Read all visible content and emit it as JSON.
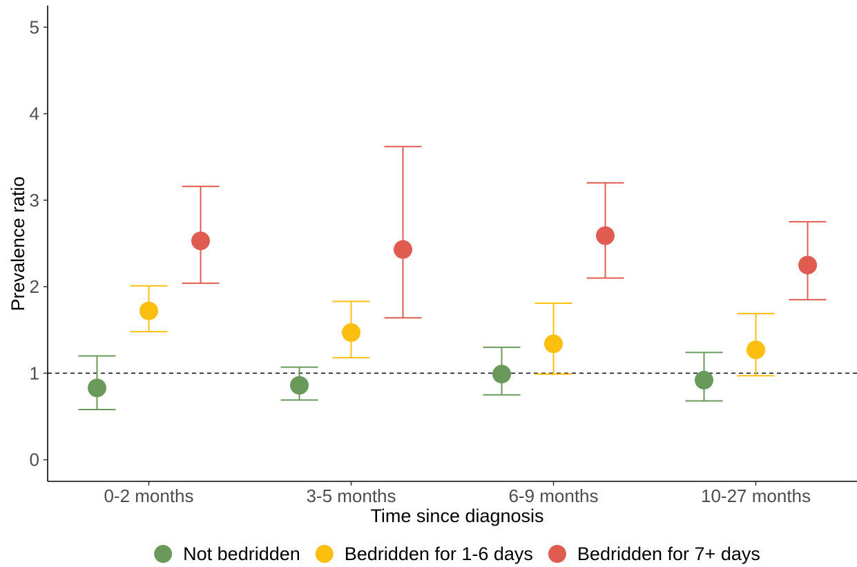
{
  "chart_data": {
    "type": "scatter",
    "title": "",
    "xlabel": "Time since diagnosis",
    "ylabel": "Prevalence ratio",
    "categories": [
      "0-2 months",
      "3-5 months",
      "6-9 months",
      "10-27 months"
    ],
    "yticks": [
      0,
      1,
      2,
      3,
      4,
      5
    ],
    "ylim": [
      -0.25,
      5.25
    ],
    "reference_line": 1,
    "grid": false,
    "legend_position": "bottom",
    "series": [
      {
        "name": "Not bedridden",
        "color": "#6a9a5b",
        "values": [
          0.83,
          0.86,
          0.99,
          0.92
        ],
        "lower": [
          0.58,
          0.69,
          0.75,
          0.68
        ],
        "upper": [
          1.2,
          1.07,
          1.3,
          1.24
        ]
      },
      {
        "name": "Bedridden for 1-6 days",
        "color": "#fdbf0f",
        "values": [
          1.72,
          1.47,
          1.34,
          1.27
        ],
        "lower": [
          1.48,
          1.18,
          0.99,
          0.97
        ],
        "upper": [
          2.01,
          1.83,
          1.81,
          1.69
        ]
      },
      {
        "name": "Bedridden for 7+ days",
        "color": "#e05c50",
        "values": [
          2.53,
          2.43,
          2.59,
          2.25
        ],
        "lower": [
          2.04,
          1.64,
          2.1,
          1.85
        ],
        "upper": [
          3.16,
          3.62,
          3.2,
          2.75
        ]
      }
    ]
  }
}
